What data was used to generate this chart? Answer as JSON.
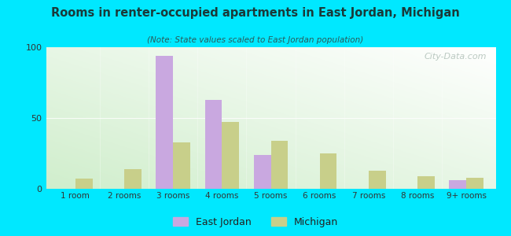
{
  "title": "Rooms in renter-occupied apartments in East Jordan, Michigan",
  "subtitle": "(Note: State values scaled to East Jordan population)",
  "categories": [
    "1 room",
    "2 rooms",
    "3 rooms",
    "4 rooms",
    "5 rooms",
    "6 rooms",
    "7 rooms",
    "8 rooms",
    "9+ rooms"
  ],
  "east_jordan": [
    0,
    0,
    94,
    63,
    24,
    0,
    0,
    0,
    6
  ],
  "michigan": [
    7,
    14,
    33,
    47,
    34,
    25,
    13,
    9,
    8
  ],
  "color_ej": "#c9a8e0",
  "color_mi": "#c8cf8a",
  "ylim": [
    0,
    100
  ],
  "yticks": [
    0,
    50,
    100
  ],
  "bg_outer": "#00e8ff",
  "watermark": "City-Data.com",
  "legend_ej": "East Jordan",
  "legend_mi": "Michigan",
  "bar_width": 0.35
}
